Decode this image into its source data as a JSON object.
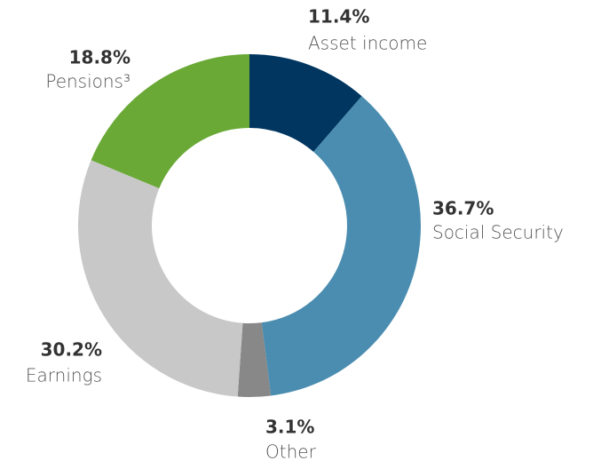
{
  "chart_data": {
    "type": "donut",
    "categories": [
      "Asset income",
      "Social Security",
      "Other",
      "Earnings",
      "Pensions³"
    ],
    "values": [
      11.4,
      36.7,
      3.1,
      30.2,
      18.8
    ],
    "value_labels": [
      "11.4%",
      "36.7%",
      "3.1%",
      "30.2%",
      "18.8%"
    ],
    "colors": [
      "#003660",
      "#4a8db0",
      "#888888",
      "#c8c8c8",
      "#6aa936"
    ]
  }
}
